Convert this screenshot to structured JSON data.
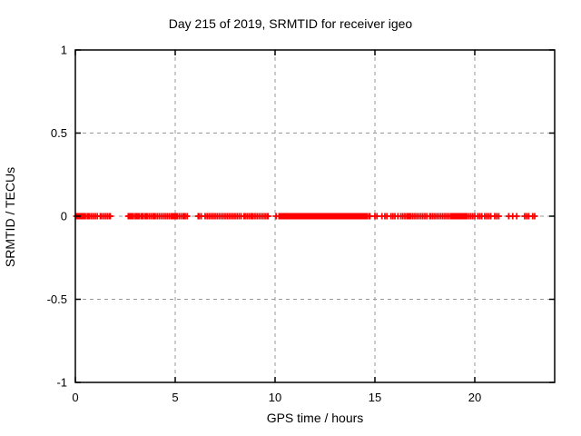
{
  "chart_data": {
    "type": "scatter",
    "title": "Day 215 of 2019, SRMTID for receiver igeo",
    "xlabel": "GPS time / hours",
    "ylabel": "SRMTID / TECUs",
    "xlim": [
      0,
      24
    ],
    "ylim": [
      -1,
      1
    ],
    "grid": true,
    "legend": "none",
    "xticks": [
      {
        "value": 0,
        "label": "0"
      },
      {
        "value": 5,
        "label": "5"
      },
      {
        "value": 10,
        "label": "10"
      },
      {
        "value": 15,
        "label": "15"
      },
      {
        "value": 20,
        "label": "20"
      }
    ],
    "yticks": [
      {
        "value": 1,
        "label": "1"
      },
      {
        "value": 0.5,
        "label": "0.5"
      },
      {
        "value": 0,
        "label": "0"
      },
      {
        "value": -0.5,
        "label": "-0.5"
      },
      {
        "value": -1,
        "label": "-1"
      }
    ],
    "colors": {
      "marker": "#ff0000",
      "grid": "#9a9a9a",
      "axis": "#000000",
      "background": "#ffffff"
    },
    "marker": {
      "shape": "plus",
      "size": 7
    },
    "series": [
      {
        "name": "SRMTID",
        "y_constant": 0,
        "x": [
          0.05,
          0.1,
          0.15,
          0.2,
          0.25,
          0.3,
          0.35,
          0.4,
          0.45,
          0.5,
          0.6,
          0.65,
          0.7,
          0.8,
          0.9,
          1.0,
          1.1,
          1.25,
          1.3,
          1.4,
          1.5,
          1.6,
          1.7,
          1.75,
          2.65,
          2.7,
          2.75,
          2.8,
          2.85,
          2.9,
          3.0,
          3.05,
          3.1,
          3.15,
          3.2,
          3.3,
          3.35,
          3.4,
          3.5,
          3.55,
          3.6,
          3.7,
          3.8,
          3.9,
          3.95,
          4.0,
          4.1,
          4.2,
          4.3,
          4.4,
          4.5,
          4.6,
          4.7,
          4.8,
          4.85,
          4.9,
          4.95,
          5.0,
          5.05,
          5.1,
          5.2,
          5.3,
          5.4,
          5.45,
          5.5,
          5.6,
          6.15,
          6.2,
          6.3,
          6.5,
          6.6,
          6.7,
          6.8,
          6.9,
          7.0,
          7.1,
          7.2,
          7.3,
          7.4,
          7.5,
          7.6,
          7.7,
          7.8,
          7.9,
          8.0,
          8.1,
          8.2,
          8.3,
          8.45,
          8.5,
          8.6,
          8.7,
          8.8,
          8.85,
          8.9,
          9.0,
          9.1,
          9.2,
          9.3,
          9.4,
          9.5,
          9.6,
          9.65,
          10.05,
          10.2,
          10.25,
          10.3,
          10.35,
          10.4,
          10.45,
          10.5,
          10.55,
          10.6,
          10.65,
          10.7,
          10.75,
          10.8,
          10.85,
          10.9,
          10.95,
          11.0,
          11.05,
          11.1,
          11.15,
          11.2,
          11.25,
          11.3,
          11.35,
          11.4,
          11.45,
          11.5,
          11.55,
          11.6,
          11.65,
          11.7,
          11.75,
          11.8,
          11.85,
          11.9,
          11.95,
          12.0,
          12.05,
          12.1,
          12.15,
          12.2,
          12.25,
          12.3,
          12.35,
          12.4,
          12.45,
          12.5,
          12.55,
          12.6,
          12.65,
          12.7,
          12.75,
          12.8,
          12.85,
          12.9,
          12.95,
          13.0,
          13.05,
          13.1,
          13.15,
          13.2,
          13.25,
          13.3,
          13.35,
          13.4,
          13.45,
          13.5,
          13.55,
          13.6,
          13.65,
          13.7,
          13.75,
          13.8,
          13.85,
          13.9,
          13.95,
          14.0,
          14.05,
          14.1,
          14.15,
          14.2,
          14.25,
          14.3,
          14.35,
          14.4,
          14.45,
          14.5,
          14.55,
          14.6,
          14.7,
          14.75,
          15.0,
          15.1,
          15.35,
          15.5,
          15.6,
          15.8,
          15.9,
          16.0,
          16.15,
          16.3,
          16.4,
          16.5,
          16.6,
          16.65,
          16.7,
          16.75,
          16.8,
          16.9,
          17.0,
          17.1,
          17.2,
          17.3,
          17.4,
          17.5,
          17.6,
          17.75,
          17.8,
          17.9,
          18.0,
          18.1,
          18.2,
          18.3,
          18.4,
          18.5,
          18.6,
          18.7,
          18.8,
          18.85,
          18.9,
          18.95,
          19.0,
          19.05,
          19.1,
          19.15,
          19.2,
          19.25,
          19.3,
          19.35,
          19.4,
          19.45,
          19.5,
          19.55,
          19.6,
          19.7,
          19.8,
          19.9,
          20.0,
          20.15,
          20.25,
          20.35,
          20.5,
          20.6,
          20.7,
          20.8,
          21.0,
          21.1,
          21.2,
          21.7,
          21.9,
          22.1,
          22.5,
          22.6,
          22.7,
          22.9,
          23.0
        ]
      }
    ]
  }
}
